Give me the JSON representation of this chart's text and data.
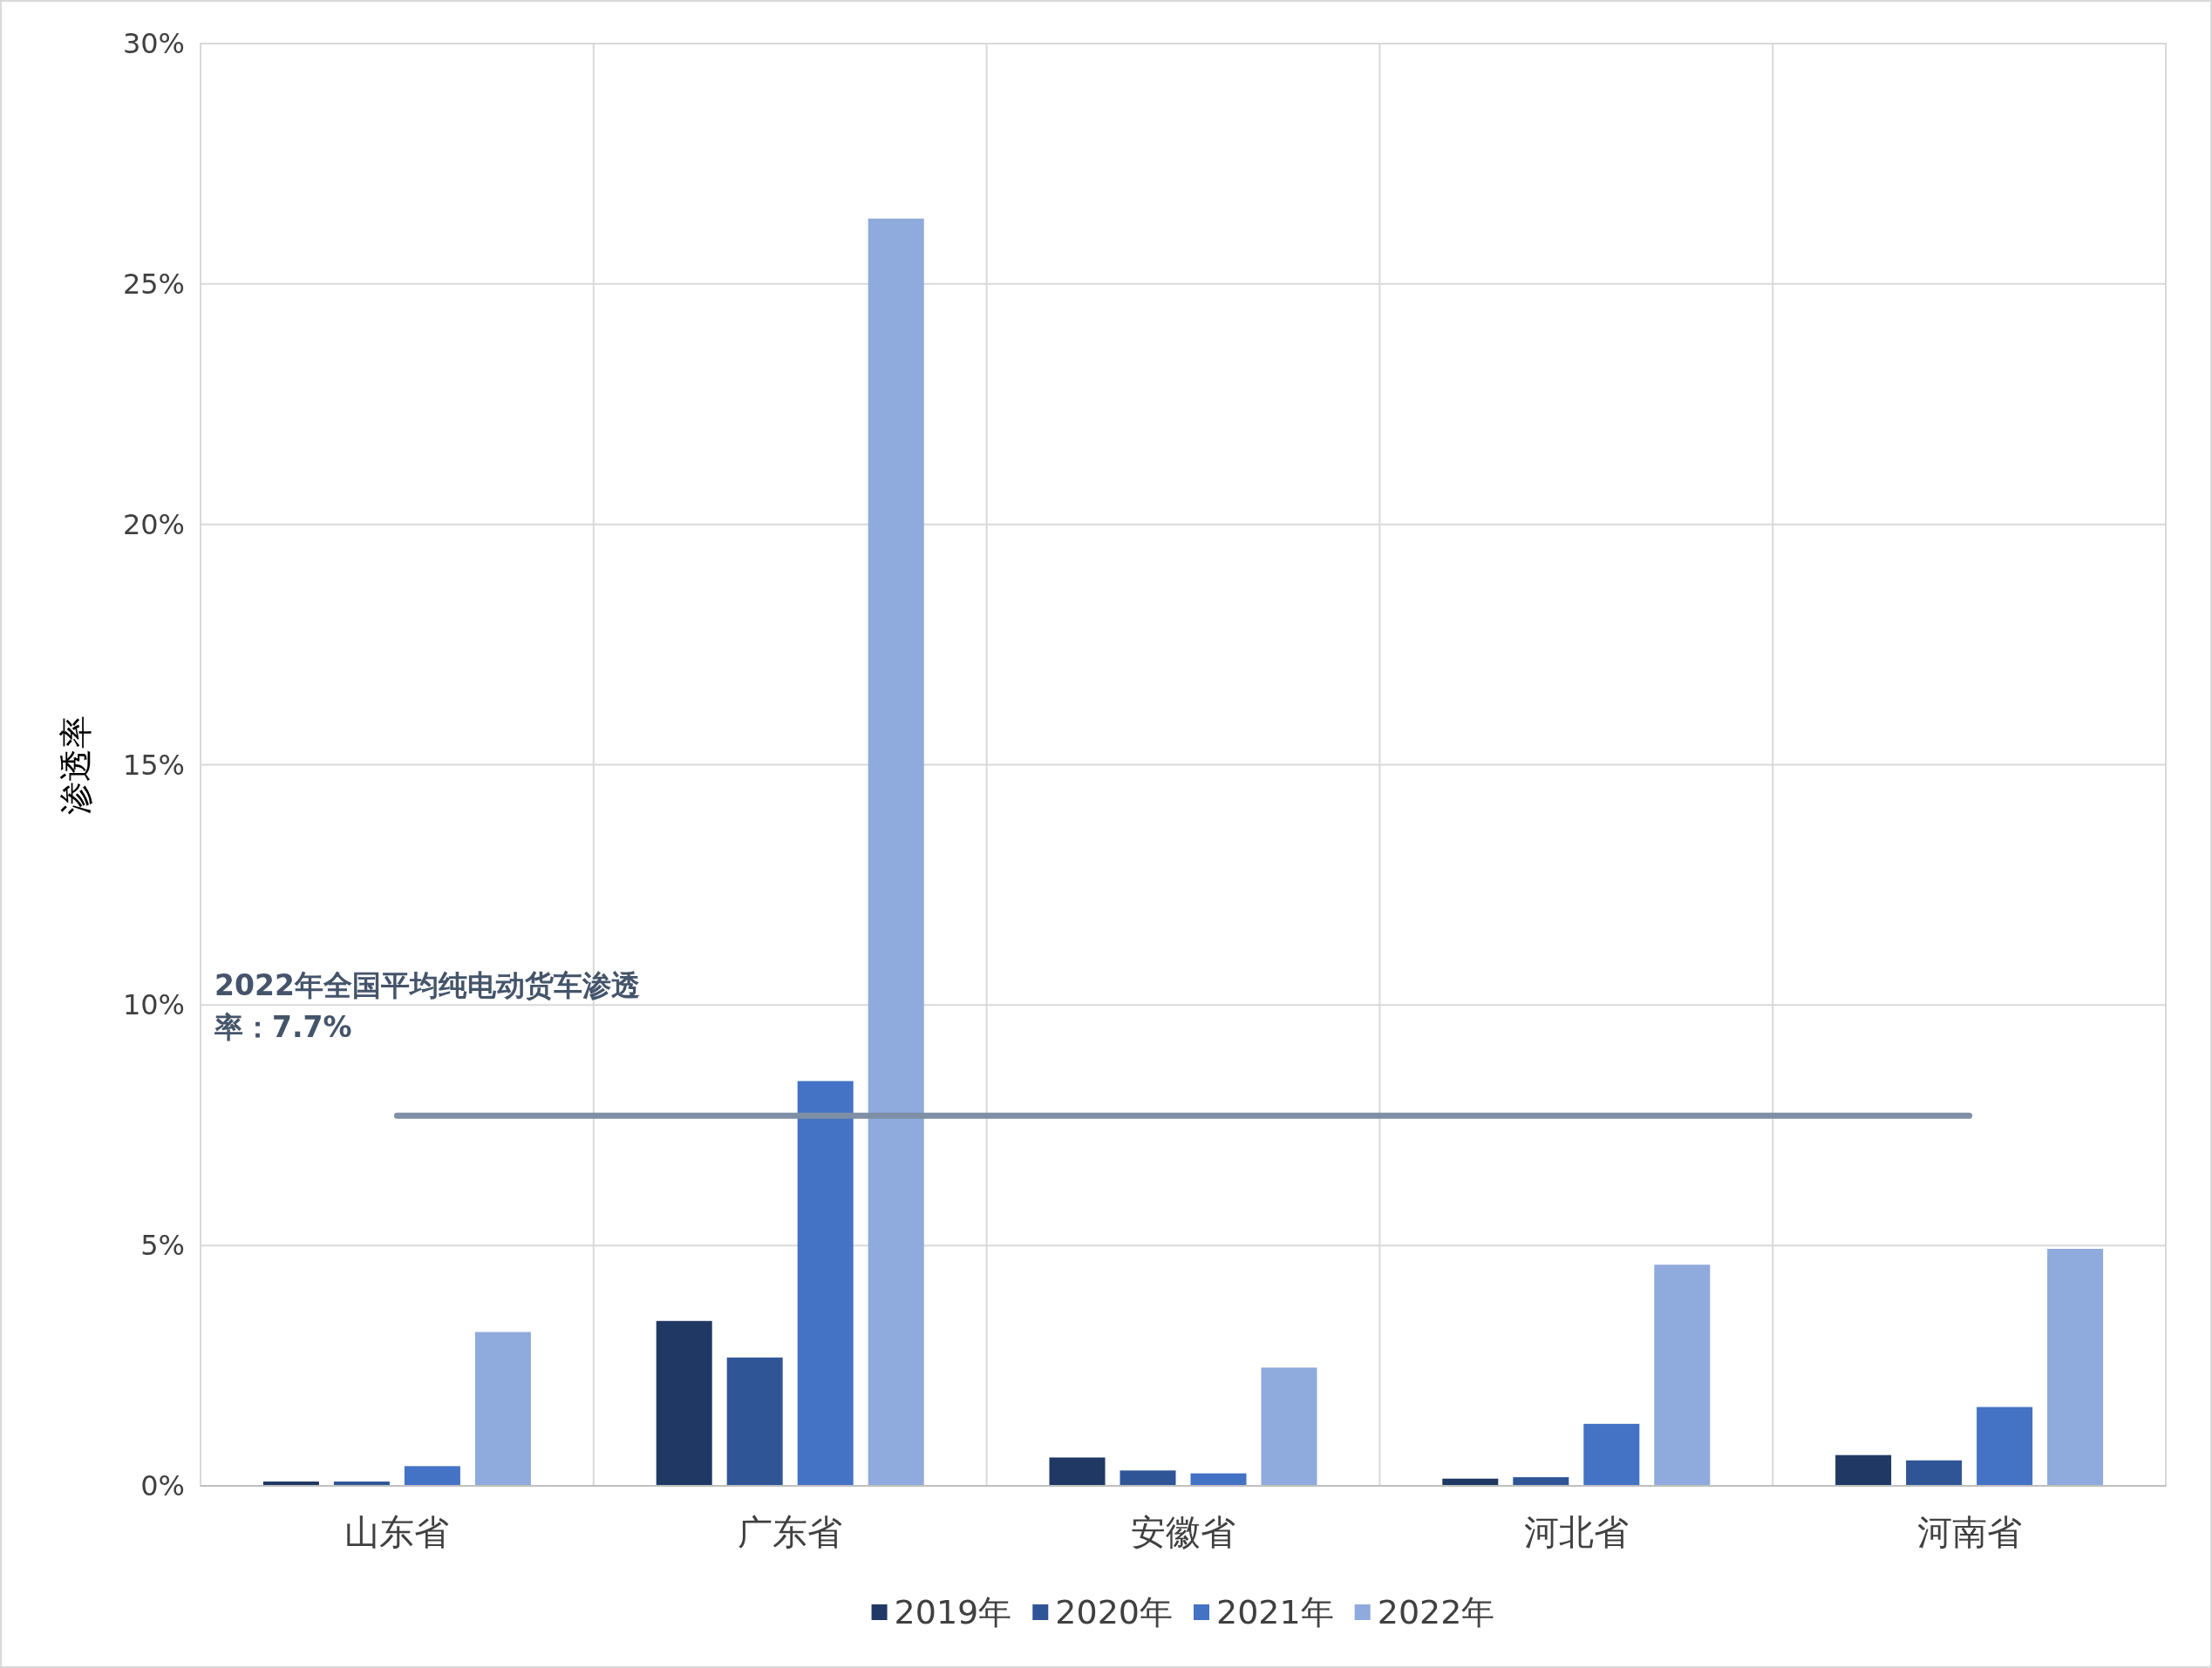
{
  "chart_data": {
    "type": "bar",
    "ylabel": "渗透率",
    "categories": [
      "山东省",
      "广东省",
      "安徽省",
      "河北省",
      "河南省"
    ],
    "series": [
      {
        "name": "2019年",
        "color": "#203864",
        "values": [
          0.09,
          3.43,
          0.59,
          0.15,
          0.64
        ]
      },
      {
        "name": "2020年",
        "color": "#2f5597",
        "values": [
          0.09,
          2.67,
          0.32,
          0.18,
          0.53
        ]
      },
      {
        "name": "2021年",
        "color": "#4472c4",
        "values": [
          0.41,
          8.42,
          0.26,
          1.29,
          1.64
        ]
      },
      {
        "name": "2022年",
        "color": "#8faadc",
        "values": [
          3.2,
          26.36,
          2.46,
          4.6,
          4.93
        ]
      }
    ],
    "ylim": [
      0,
      30
    ],
    "yticks": [
      {
        "value": 0,
        "label": "0%"
      },
      {
        "value": 5,
        "label": "5%"
      },
      {
        "value": 10,
        "label": "10%"
      },
      {
        "value": 15,
        "label": "15%"
      },
      {
        "value": 20,
        "label": "20%"
      },
      {
        "value": 25,
        "label": "25%"
      },
      {
        "value": 30,
        "label": "30%"
      }
    ],
    "ref_lines": [
      {
        "axis": "y",
        "value": 7.7,
        "label": "2022年全国平均纯电动货车渗透率：7.7%",
        "color": "#7f8fa6"
      }
    ],
    "grid": true,
    "legend": "bottom"
  }
}
